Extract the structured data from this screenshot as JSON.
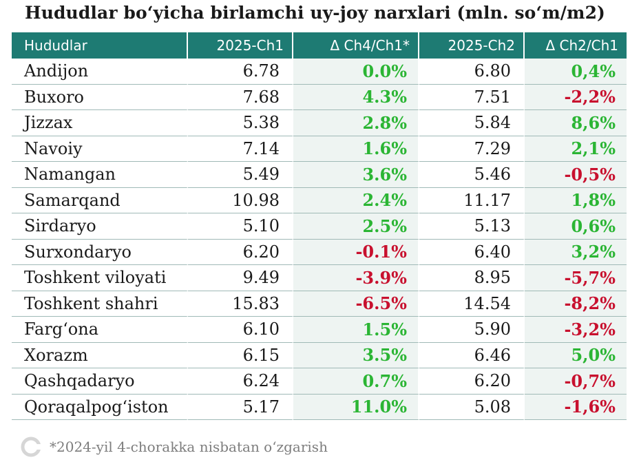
{
  "chart_data": {
    "type": "table",
    "title": "Hududlar boʻyicha birlamchi uy-joy narxlari (mln. soʻm/m2)",
    "columns": [
      "Hududlar",
      "2025-Ch1",
      "Δ Ch4/Ch1*",
      "2025-Ch2",
      "Δ Ch2/Ch1"
    ],
    "rows": [
      {
        "region": "Andijon",
        "ch1": "6.78",
        "d1": "0.0%",
        "d1_sign": "pos",
        "ch2": "6.80",
        "d2": "0,4%",
        "d2_sign": "pos"
      },
      {
        "region": "Buxoro",
        "ch1": "7.68",
        "d1": "4.3%",
        "d1_sign": "pos",
        "ch2": "7.51",
        "d2": "-2,2%",
        "d2_sign": "neg"
      },
      {
        "region": "Jizzax",
        "ch1": "5.38",
        "d1": "2.8%",
        "d1_sign": "pos",
        "ch2": "5.84",
        "d2": "8,6%",
        "d2_sign": "pos"
      },
      {
        "region": "Navoiy",
        "ch1": "7.14",
        "d1": "1.6%",
        "d1_sign": "pos",
        "ch2": "7.29",
        "d2": "2,1%",
        "d2_sign": "pos"
      },
      {
        "region": "Namangan",
        "ch1": "5.49",
        "d1": "3.6%",
        "d1_sign": "pos",
        "ch2": "5.46",
        "d2": "-0,5%",
        "d2_sign": "neg"
      },
      {
        "region": "Samarqand",
        "ch1": "10.98",
        "d1": "2.4%",
        "d1_sign": "pos",
        "ch2": "11.17",
        "d2": "1,8%",
        "d2_sign": "pos"
      },
      {
        "region": "Sirdaryo",
        "ch1": "5.10",
        "d1": "2.5%",
        "d1_sign": "pos",
        "ch2": "5.13",
        "d2": "0,6%",
        "d2_sign": "pos"
      },
      {
        "region": "Surxondaryo",
        "ch1": "6.20",
        "d1": "-0.1%",
        "d1_sign": "neg",
        "ch2": "6.40",
        "d2": "3,2%",
        "d2_sign": "pos"
      },
      {
        "region": "Toshkent viloyati",
        "ch1": "9.49",
        "d1": "-3.9%",
        "d1_sign": "neg",
        "ch2": "8.95",
        "d2": "-5,7%",
        "d2_sign": "neg"
      },
      {
        "region": "Toshkent shahri",
        "ch1": "15.83",
        "d1": "-6.5%",
        "d1_sign": "neg",
        "ch2": "14.54",
        "d2": "-8,2%",
        "d2_sign": "neg"
      },
      {
        "region": "Fargʻona",
        "ch1": "6.10",
        "d1": "1.5%",
        "d1_sign": "pos",
        "ch2": "5.90",
        "d2": "-3,2%",
        "d2_sign": "neg"
      },
      {
        "region": "Xorazm",
        "ch1": "6.15",
        "d1": "3.5%",
        "d1_sign": "pos",
        "ch2": "6.46",
        "d2": "5,0%",
        "d2_sign": "pos"
      },
      {
        "region": "Qashqadaryo",
        "ch1": "6.24",
        "d1": "0.7%",
        "d1_sign": "pos",
        "ch2": "6.20",
        "d2": "-0,7%",
        "d2_sign": "neg"
      },
      {
        "region": "Qoraqalpogʻiston",
        "ch1": "5.17",
        "d1": "11.0%",
        "d1_sign": "pos",
        "ch2": "5.08",
        "d2": "-1,6%",
        "d2_sign": "neg"
      }
    ],
    "footnote": "*2024-yil 4-chorakka nisbatan oʻzgarish"
  },
  "colors": {
    "header_bg": "#1e7b73",
    "positive": "#2bb534",
    "negative": "#c8102e",
    "delta_bg": "#eef4f2"
  },
  "icons": {
    "footer_logo": "c-logo-icon"
  }
}
